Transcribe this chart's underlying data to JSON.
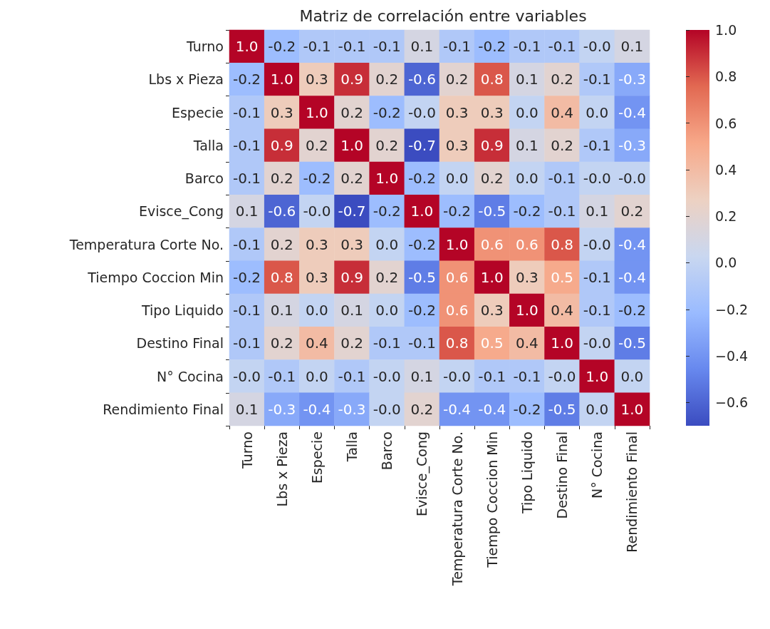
{
  "chart_data": {
    "type": "heatmap",
    "title": "Matriz de correlación entre variables",
    "categories": [
      "Turno",
      "Lbs x Pieza",
      "Especie",
      "Talla",
      "Barco",
      "Evisce_Cong",
      "Temperatura Corte No.",
      "Tiempo Coccion Min",
      "Tipo Liquido",
      "Destino Final",
      "N° Cocina",
      "Rendimiento Final"
    ],
    "y_categories": [
      "Turno",
      "Lbs x Pieza",
      "Especie",
      "Talla",
      "Barco",
      "Evisce_Cong",
      "Temperatura Corte No.",
      "Tiempo Coccion Min",
      "Tipo Liquido",
      "Destino Final",
      "N° Cocina",
      "Rendimiento Final"
    ],
    "cells": [
      [
        1.0,
        -0.2,
        -0.1,
        -0.1,
        -0.1,
        0.1,
        -0.1,
        -0.2,
        -0.1,
        -0.1,
        0.0,
        0.1
      ],
      [
        -0.2,
        1.0,
        0.3,
        0.9,
        0.2,
        -0.6,
        0.2,
        0.8,
        0.1,
        0.2,
        -0.1,
        -0.3
      ],
      [
        -0.1,
        0.3,
        1.0,
        0.2,
        -0.2,
        0.0,
        0.3,
        0.3,
        0.0,
        0.4,
        0.0,
        -0.4
      ],
      [
        -0.1,
        0.9,
        0.2,
        1.0,
        0.2,
        -0.7,
        0.3,
        0.9,
        0.1,
        0.2,
        -0.1,
        -0.3
      ],
      [
        -0.1,
        0.2,
        -0.2,
        0.2,
        1.0,
        -0.2,
        0.0,
        0.2,
        0.0,
        -0.1,
        0.0,
        0.0
      ],
      [
        0.1,
        -0.6,
        0.0,
        -0.7,
        -0.2,
        1.0,
        -0.2,
        -0.5,
        -0.2,
        -0.1,
        0.1,
        0.2
      ],
      [
        -0.1,
        0.2,
        0.3,
        0.3,
        0.0,
        -0.2,
        1.0,
        0.6,
        0.6,
        0.8,
        0.0,
        -0.4
      ],
      [
        -0.2,
        0.8,
        0.3,
        0.9,
        0.2,
        -0.5,
        0.6,
        1.0,
        0.3,
        0.5,
        -0.1,
        -0.4
      ],
      [
        -0.1,
        0.1,
        0.0,
        0.1,
        0.0,
        -0.2,
        0.6,
        0.3,
        1.0,
        0.4,
        -0.1,
        -0.2
      ],
      [
        -0.1,
        0.2,
        0.4,
        0.2,
        -0.1,
        -0.1,
        0.8,
        0.5,
        0.4,
        1.0,
        0.0,
        -0.5
      ],
      [
        0.0,
        -0.1,
        0.0,
        -0.1,
        0.0,
        0.1,
        0.0,
        -0.1,
        -0.1,
        0.0,
        1.0,
        0.0
      ],
      [
        0.1,
        -0.3,
        -0.4,
        -0.3,
        0.0,
        0.2,
        -0.4,
        -0.4,
        -0.2,
        -0.5,
        0.0,
        1.0
      ]
    ],
    "cell_labels": [
      [
        "1.0",
        "-0.2",
        "-0.1",
        "-0.1",
        "-0.1",
        "0.1",
        "-0.1",
        "-0.2",
        "-0.1",
        "-0.1",
        "-0.0",
        "0.1"
      ],
      [
        "-0.2",
        "1.0",
        "0.3",
        "0.9",
        "0.2",
        "-0.6",
        "0.2",
        "0.8",
        "0.1",
        "0.2",
        "-0.1",
        "-0.3"
      ],
      [
        "-0.1",
        "0.3",
        "1.0",
        "0.2",
        "-0.2",
        "-0.0",
        "0.3",
        "0.3",
        "0.0",
        "0.4",
        "0.0",
        "-0.4"
      ],
      [
        "-0.1",
        "0.9",
        "0.2",
        "1.0",
        "0.2",
        "-0.7",
        "0.3",
        "0.9",
        "0.1",
        "0.2",
        "-0.1",
        "-0.3"
      ],
      [
        "-0.1",
        "0.2",
        "-0.2",
        "0.2",
        "1.0",
        "-0.2",
        "0.0",
        "0.2",
        "0.0",
        "-0.1",
        "-0.0",
        "-0.0"
      ],
      [
        "0.1",
        "-0.6",
        "-0.0",
        "-0.7",
        "-0.2",
        "1.0",
        "-0.2",
        "-0.5",
        "-0.2",
        "-0.1",
        "0.1",
        "0.2"
      ],
      [
        "-0.1",
        "0.2",
        "0.3",
        "0.3",
        "0.0",
        "-0.2",
        "1.0",
        "0.6",
        "0.6",
        "0.8",
        "-0.0",
        "-0.4"
      ],
      [
        "-0.2",
        "0.8",
        "0.3",
        "0.9",
        "0.2",
        "-0.5",
        "0.6",
        "1.0",
        "0.3",
        "0.5",
        "-0.1",
        "-0.4"
      ],
      [
        "-0.1",
        "0.1",
        "0.0",
        "0.1",
        "0.0",
        "-0.2",
        "0.6",
        "0.3",
        "1.0",
        "0.4",
        "-0.1",
        "-0.2"
      ],
      [
        "-0.1",
        "0.2",
        "0.4",
        "0.2",
        "-0.1",
        "-0.1",
        "0.8",
        "0.5",
        "0.4",
        "1.0",
        "-0.0",
        "-0.5"
      ],
      [
        "-0.0",
        "-0.1",
        "0.0",
        "-0.1",
        "-0.0",
        "0.1",
        "-0.0",
        "-0.1",
        "-0.1",
        "-0.0",
        "1.0",
        "0.0"
      ],
      [
        "0.1",
        "-0.3",
        "-0.4",
        "-0.3",
        "-0.0",
        "0.2",
        "-0.4",
        "-0.4",
        "-0.2",
        "-0.5",
        "0.0",
        "1.0"
      ]
    ],
    "clim": [
      -0.7,
      1.0
    ],
    "cticks": [
      {
        "value": -0.6,
        "label": "−0.6"
      },
      {
        "value": -0.4,
        "label": "−0.4"
      },
      {
        "value": -0.2,
        "label": "−0.2"
      },
      {
        "value": 0,
        "label": "0.0"
      },
      0.2,
      0.4,
      0.6,
      0.8,
      {
        "value": 1,
        "label": "1.0"
      }
    ]
  }
}
